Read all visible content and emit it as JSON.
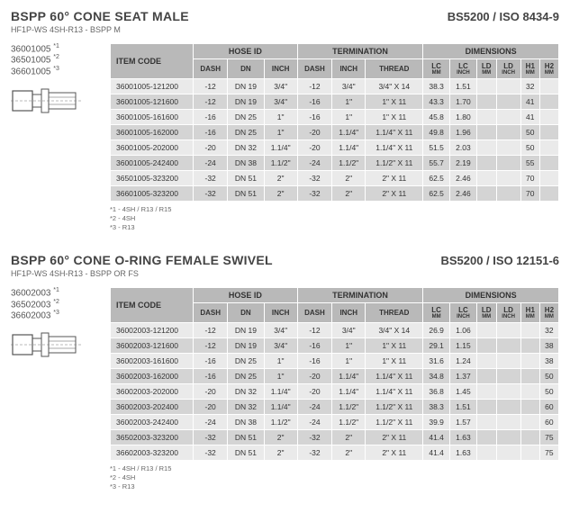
{
  "sections": [
    {
      "title": "BSPP 60° CONE SEAT MALE",
      "spec": "BS5200 / ISO 8434-9",
      "subtitle": "HF1P-WS 4SH-R13 - BSPP M",
      "codes": [
        {
          "code": "36001005",
          "sup": "*1"
        },
        {
          "code": "36501005",
          "sup": "*2"
        },
        {
          "code": "36601005",
          "sup": "*3"
        }
      ],
      "group_headers": [
        "ITEM CODE",
        "HOSE ID",
        "TERMINATION",
        "DIMENSIONS"
      ],
      "sub_headers": [
        "DASH",
        "DN",
        "INCH",
        "DASH",
        "INCH",
        "THREAD",
        "LC",
        "LC",
        "LD",
        "LD",
        "H1",
        "H2"
      ],
      "sub_units": [
        "",
        "",
        "",
        "",
        "",
        "",
        "MM",
        "INCH",
        "MM",
        "INCH",
        "MM",
        "MM"
      ],
      "rows": [
        [
          "36001005-121200",
          "-12",
          "DN 19",
          "3/4\"",
          "-12",
          "3/4\"",
          "3/4\" X 14",
          "38.3",
          "1.51",
          "",
          "",
          "32",
          ""
        ],
        [
          "36001005-121600",
          "-12",
          "DN 19",
          "3/4\"",
          "-16",
          "1\"",
          "1\" X 11",
          "43.3",
          "1.70",
          "",
          "",
          "41",
          ""
        ],
        [
          "36001005-161600",
          "-16",
          "DN 25",
          "1\"",
          "-16",
          "1\"",
          "1\" X 11",
          "45.8",
          "1.80",
          "",
          "",
          "41",
          ""
        ],
        [
          "36001005-162000",
          "-16",
          "DN 25",
          "1\"",
          "-20",
          "1.1/4\"",
          "1.1/4\" X 11",
          "49.8",
          "1.96",
          "",
          "",
          "50",
          ""
        ],
        [
          "36001005-202000",
          "-20",
          "DN 32",
          "1.1/4\"",
          "-20",
          "1.1/4\"",
          "1.1/4\" X 11",
          "51.5",
          "2.03",
          "",
          "",
          "50",
          ""
        ],
        [
          "36001005-242400",
          "-24",
          "DN 38",
          "1.1/2\"",
          "-24",
          "1.1/2\"",
          "1.1/2\" X 11",
          "55.7",
          "2.19",
          "",
          "",
          "55",
          ""
        ],
        [
          "36501005-323200",
          "-32",
          "DN 51",
          "2\"",
          "-32",
          "2\"",
          "2\" X 11",
          "62.5",
          "2.46",
          "",
          "",
          "70",
          ""
        ],
        [
          "36601005-323200",
          "-32",
          "DN 51",
          "2\"",
          "-32",
          "2\"",
          "2\" X 11",
          "62.5",
          "2.46",
          "",
          "",
          "70",
          ""
        ]
      ],
      "footnotes": [
        "*1 - 4SH / R13 / R15",
        "*2 - 4SH",
        "*3 - R13"
      ]
    },
    {
      "title": "BSPP 60° CONE O-RING FEMALE SWIVEL",
      "spec": "BS5200 / ISO 12151-6",
      "subtitle": "HF1P-WS 4SH-R13 - BSPP OR FS",
      "codes": [
        {
          "code": "36002003",
          "sup": "*1"
        },
        {
          "code": "36502003",
          "sup": "*2"
        },
        {
          "code": "36602003",
          "sup": "*3"
        }
      ],
      "group_headers": [
        "ITEM CODE",
        "HOSE ID",
        "TERMINATION",
        "DIMENSIONS"
      ],
      "sub_headers": [
        "DASH",
        "DN",
        "INCH",
        "DASH",
        "INCH",
        "THREAD",
        "LC",
        "LC",
        "LD",
        "LD",
        "H1",
        "H2"
      ],
      "sub_units": [
        "",
        "",
        "",
        "",
        "",
        "",
        "MM",
        "INCH",
        "MM",
        "INCH",
        "MM",
        "MM"
      ],
      "rows": [
        [
          "36002003-121200",
          "-12",
          "DN 19",
          "3/4\"",
          "-12",
          "3/4\"",
          "3/4\" X 14",
          "26.9",
          "1.06",
          "",
          "",
          "",
          "32"
        ],
        [
          "36002003-121600",
          "-12",
          "DN 19",
          "3/4\"",
          "-16",
          "1\"",
          "1\" X 11",
          "29.1",
          "1.15",
          "",
          "",
          "",
          "38"
        ],
        [
          "36002003-161600",
          "-16",
          "DN 25",
          "1\"",
          "-16",
          "1\"",
          "1\" X 11",
          "31.6",
          "1.24",
          "",
          "",
          "",
          "38"
        ],
        [
          "36002003-162000",
          "-16",
          "DN 25",
          "1\"",
          "-20",
          "1.1/4\"",
          "1.1/4\" X 11",
          "34.8",
          "1.37",
          "",
          "",
          "",
          "50"
        ],
        [
          "36002003-202000",
          "-20",
          "DN 32",
          "1.1/4\"",
          "-20",
          "1.1/4\"",
          "1.1/4\" X 11",
          "36.8",
          "1.45",
          "",
          "",
          "",
          "50"
        ],
        [
          "36002003-202400",
          "-20",
          "DN 32",
          "1.1/4\"",
          "-24",
          "1.1/2\"",
          "1.1/2\" X 11",
          "38.3",
          "1.51",
          "",
          "",
          "",
          "60"
        ],
        [
          "36002003-242400",
          "-24",
          "DN 38",
          "1.1/2\"",
          "-24",
          "1.1/2\"",
          "1.1/2\" X 11",
          "39.9",
          "1.57",
          "",
          "",
          "",
          "60"
        ],
        [
          "36502003-323200",
          "-32",
          "DN 51",
          "2\"",
          "-32",
          "2\"",
          "2\" X 11",
          "41.4",
          "1.63",
          "",
          "",
          "",
          "75"
        ],
        [
          "36602003-323200",
          "-32",
          "DN 51",
          "2\"",
          "-32",
          "2\"",
          "2\" X 11",
          "41.4",
          "1.63",
          "",
          "",
          "",
          "75"
        ]
      ],
      "footnotes": [
        "*1 - 4SH / R13 / R15",
        "*2 - 4SH",
        "*3 - R13"
      ]
    }
  ],
  "colors": {
    "header_bg": "#b9b9b9",
    "row_odd": "#eaeaea",
    "row_even": "#d4d4d4"
  }
}
